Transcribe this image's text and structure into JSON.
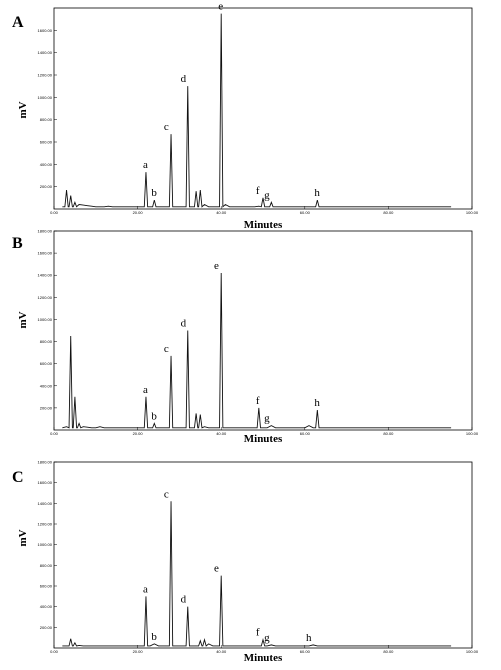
{
  "chart_data": [
    {
      "type": "line",
      "panel_label": "A",
      "xlabel": "Minutes",
      "ylabel": "mV",
      "xlim": [
        0,
        100
      ],
      "ylim": [
        0,
        1800
      ],
      "x_ticks": [
        "0.00",
        "20.00",
        "40.00",
        "60.00",
        "80.00",
        "100.00"
      ],
      "y_ticks": [
        "200.00",
        "400.00",
        "600.00",
        "800.00",
        "1000.00",
        "1200.00",
        "1400.00",
        "1600.00"
      ],
      "y_tick_values": [
        200,
        400,
        600,
        800,
        1000,
        1200,
        1400,
        1600
      ],
      "series": [
        {
          "x": [
            2,
            3,
            4,
            5,
            6,
            7,
            8,
            9,
            10,
            11,
            12,
            13,
            14,
            15,
            16,
            17,
            18,
            19,
            20,
            21,
            22,
            23,
            24,
            25,
            26,
            27,
            28,
            29,
            30,
            31,
            32,
            33,
            34,
            35,
            36,
            37,
            38,
            39,
            40,
            41,
            42,
            43,
            44,
            45,
            46,
            47,
            48,
            49,
            50,
            51,
            52,
            53,
            54,
            55,
            56,
            57,
            58,
            59,
            60,
            61,
            62,
            63,
            64,
            65,
            66,
            67,
            68,
            69,
            70,
            71,
            72,
            73,
            74,
            75,
            76,
            77,
            78,
            79,
            80,
            81,
            82,
            83,
            84,
            85,
            86,
            87,
            88,
            89,
            90,
            91,
            92,
            93,
            94,
            95
          ],
          "y": [
            20,
            170,
            120,
            60,
            40,
            35,
            30,
            25,
            20,
            20,
            20,
            25,
            20,
            20,
            20,
            20,
            20,
            20,
            20,
            20,
            330,
            20,
            80,
            20,
            20,
            20,
            670,
            20,
            20,
            20,
            1100,
            20,
            160,
            170,
            40,
            20,
            20,
            20,
            1750,
            40,
            20,
            20,
            20,
            20,
            20,
            20,
            20,
            25,
            100,
            20,
            60,
            20,
            20,
            20,
            20,
            20,
            20,
            20,
            20,
            20,
            20,
            80,
            20,
            20,
            20,
            20,
            20,
            20,
            20,
            20,
            20,
            20,
            20,
            20,
            20,
            20,
            20,
            20,
            20,
            20,
            20,
            20,
            20,
            20,
            20,
            20,
            20,
            20,
            20,
            20,
            20,
            20,
            20,
            20
          ]
        }
      ],
      "peak_labels": [
        {
          "label": "a",
          "x": 22,
          "y": 330
        },
        {
          "label": "b",
          "x": 24,
          "y": 80
        },
        {
          "label": "c",
          "x": 27,
          "y": 670
        },
        {
          "label": "d",
          "x": 31,
          "y": 1100
        },
        {
          "label": "e",
          "x": 40,
          "y": 1750
        },
        {
          "label": "f",
          "x": 49,
          "y": 100
        },
        {
          "label": "g",
          "x": 51,
          "y": 60
        },
        {
          "label": "h",
          "x": 63,
          "y": 80
        }
      ]
    },
    {
      "type": "line",
      "panel_label": "B",
      "xlabel": "Minutes",
      "ylabel": "mV",
      "xlim": [
        0,
        100
      ],
      "ylim": [
        0,
        1800
      ],
      "x_ticks": [
        "0.00",
        "20.00",
        "40.00",
        "60.00",
        "80.00",
        "100.00"
      ],
      "y_ticks": [
        "200.00",
        "400.00",
        "600.00",
        "800.00",
        "1000.00",
        "1200.00",
        "1400.00",
        "1600.00",
        "1800.00"
      ],
      "y_tick_values": [
        200,
        400,
        600,
        800,
        1000,
        1200,
        1400,
        1600,
        1800
      ],
      "series": [
        {
          "x": [
            2,
            3,
            4,
            5,
            6,
            7,
            8,
            9,
            10,
            11,
            12,
            13,
            14,
            15,
            16,
            17,
            18,
            19,
            20,
            21,
            22,
            23,
            24,
            25,
            26,
            27,
            28,
            29,
            30,
            31,
            32,
            33,
            34,
            35,
            36,
            37,
            38,
            39,
            40,
            41,
            42,
            43,
            44,
            45,
            46,
            47,
            48,
            49,
            50,
            51,
            52,
            53,
            54,
            55,
            56,
            57,
            58,
            59,
            60,
            61,
            62,
            63,
            64,
            65,
            66,
            67,
            68,
            69,
            70,
            71,
            72,
            73,
            74,
            75,
            76,
            77,
            78,
            79,
            80,
            81,
            82,
            83,
            84,
            85,
            86,
            87,
            88,
            89,
            90,
            91,
            92,
            93,
            94,
            95
          ],
          "y": [
            20,
            30,
            850,
            300,
            60,
            30,
            25,
            20,
            20,
            30,
            20,
            20,
            20,
            20,
            20,
            20,
            20,
            20,
            20,
            20,
            300,
            20,
            60,
            20,
            20,
            20,
            670,
            20,
            20,
            20,
            900,
            20,
            150,
            140,
            30,
            20,
            20,
            20,
            1420,
            20,
            20,
            20,
            20,
            20,
            20,
            20,
            20,
            200,
            20,
            20,
            40,
            20,
            20,
            20,
            20,
            20,
            20,
            20,
            20,
            40,
            20,
            180,
            20,
            20,
            20,
            20,
            20,
            20,
            20,
            20,
            20,
            20,
            20,
            20,
            20,
            20,
            20,
            20,
            20,
            20,
            20,
            20,
            20,
            20,
            20,
            20,
            20,
            20,
            20,
            20,
            20,
            20,
            20,
            20
          ]
        }
      ],
      "peak_labels": [
        {
          "label": "a",
          "x": 22,
          "y": 300
        },
        {
          "label": "b",
          "x": 24,
          "y": 60
        },
        {
          "label": "c",
          "x": 27,
          "y": 670
        },
        {
          "label": "d",
          "x": 31,
          "y": 900
        },
        {
          "label": "e",
          "x": 39,
          "y": 1420
        },
        {
          "label": "f",
          "x": 49,
          "y": 200
        },
        {
          "label": "g",
          "x": 51,
          "y": 40
        },
        {
          "label": "h",
          "x": 63,
          "y": 180
        }
      ]
    },
    {
      "type": "line",
      "panel_label": "C",
      "xlabel": "Minutes",
      "ylabel": "mV",
      "xlim": [
        0,
        100
      ],
      "ylim": [
        0,
        1800
      ],
      "x_ticks": [
        "0.00",
        "20.00",
        "40.00",
        "60.00",
        "80.00",
        "100.00"
      ],
      "y_ticks": [
        "200.00",
        "400.00",
        "600.00",
        "800.00",
        "1000.00",
        "1200.00",
        "1400.00",
        "1600.00",
        "1800.00"
      ],
      "y_tick_values": [
        200,
        400,
        600,
        800,
        1000,
        1200,
        1400,
        1600,
        1800
      ],
      "series": [
        {
          "x": [
            2,
            3,
            4,
            5,
            6,
            7,
            8,
            9,
            10,
            11,
            12,
            13,
            14,
            15,
            16,
            17,
            18,
            19,
            20,
            21,
            22,
            23,
            24,
            25,
            26,
            27,
            28,
            29,
            30,
            31,
            32,
            33,
            34,
            35,
            36,
            37,
            38,
            39,
            40,
            41,
            42,
            43,
            44,
            45,
            46,
            47,
            48,
            49,
            50,
            51,
            52,
            53,
            54,
            55,
            56,
            57,
            58,
            59,
            60,
            61,
            62,
            63,
            64,
            65,
            66,
            67,
            68,
            69,
            70,
            71,
            72,
            73,
            74,
            75,
            76,
            77,
            78,
            79,
            80,
            81,
            82,
            83,
            84,
            85,
            86,
            87,
            88,
            89,
            90,
            91,
            92,
            93,
            94,
            95
          ],
          "y": [
            20,
            20,
            90,
            50,
            25,
            20,
            20,
            20,
            20,
            20,
            20,
            20,
            20,
            20,
            20,
            20,
            20,
            20,
            20,
            20,
            500,
            20,
            40,
            20,
            20,
            20,
            1420,
            20,
            20,
            20,
            400,
            20,
            20,
            70,
            80,
            40,
            20,
            20,
            700,
            20,
            20,
            20,
            20,
            20,
            20,
            20,
            20,
            20,
            80,
            20,
            30,
            20,
            20,
            20,
            20,
            20,
            20,
            20,
            20,
            20,
            30,
            20,
            20,
            20,
            20,
            20,
            20,
            20,
            20,
            20,
            20,
            20,
            20,
            20,
            20,
            20,
            20,
            20,
            20,
            20,
            20,
            20,
            20,
            20,
            20,
            20,
            20,
            20,
            20,
            20,
            20,
            20,
            20,
            20
          ]
        }
      ],
      "peak_labels": [
        {
          "label": "a",
          "x": 22,
          "y": 500
        },
        {
          "label": "b",
          "x": 24,
          "y": 40
        },
        {
          "label": "c",
          "x": 27,
          "y": 1420
        },
        {
          "label": "d",
          "x": 31,
          "y": 400
        },
        {
          "label": "e",
          "x": 39,
          "y": 700
        },
        {
          "label": "f",
          "x": 49,
          "y": 80
        },
        {
          "label": "g",
          "x": 51,
          "y": 30
        },
        {
          "label": "h",
          "x": 61,
          "y": 30
        }
      ]
    }
  ]
}
